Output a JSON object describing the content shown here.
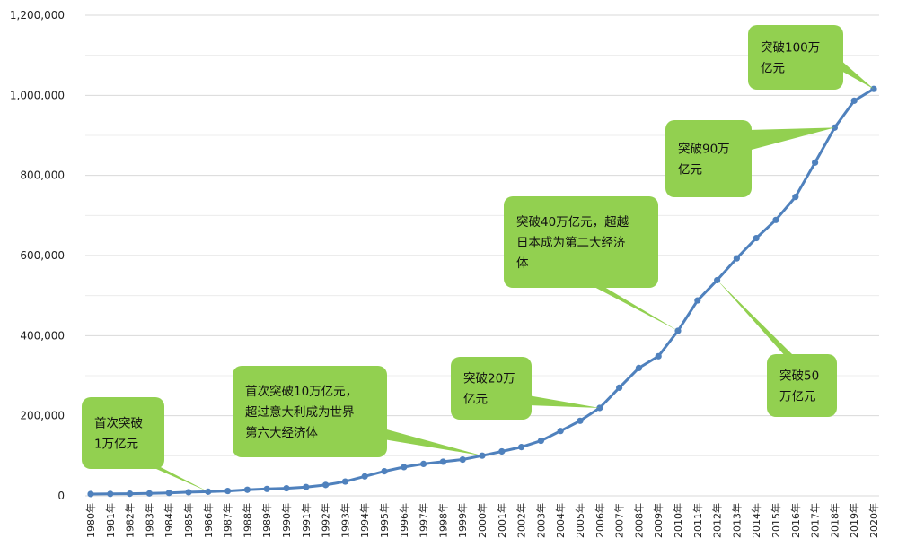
{
  "chart_data": {
    "type": "line",
    "title": "",
    "xlabel": "",
    "ylabel": "",
    "ylim": [
      0,
      1200000
    ],
    "yticks": [
      0,
      200000,
      400000,
      600000,
      800000,
      1000000,
      1200000
    ],
    "ytick_labels": [
      "0",
      "200,000",
      "400,000",
      "600,000",
      "800,000",
      "1,000,000",
      "1,200,000"
    ],
    "grid": true,
    "legend": "none",
    "line_color": "#4f81bd",
    "callout_color": "#92d050",
    "categories": [
      "1980年",
      "1981年",
      "1982年",
      "1983年",
      "1984年",
      "1985年",
      "1986年",
      "1987年",
      "1988年",
      "1989年",
      "1990年",
      "1991年",
      "1992年",
      "1993年",
      "1994年",
      "1995年",
      "1996年",
      "1997年",
      "1998年",
      "1999年",
      "2000年",
      "2001年",
      "2002年",
      "2003年",
      "2004年",
      "2005年",
      "2006年",
      "2007年",
      "2008年",
      "2009年",
      "2010年",
      "2011年",
      "2012年",
      "2013年",
      "2014年",
      "2015年",
      "2016年",
      "2017年",
      "2018年",
      "2019年",
      "2020年"
    ],
    "values": [
      4588,
      4936,
      5373,
      6021,
      7279,
      9099,
      10376,
      12175,
      15180,
      17180,
      18873,
      22006,
      27195,
      35673,
      48638,
      61340,
      71814,
      79715,
      85196,
      90564,
      100280,
      110863,
      121717,
      137422,
      161840,
      187319,
      219439,
      270092,
      319245,
      348518,
      412119,
      487940,
      538580,
      592963,
      643563,
      688858,
      746395,
      832036,
      919281,
      986515,
      1015986
    ],
    "annotations": [
      {
        "lines": [
          "首次突破",
          "1万亿元"
        ],
        "category": "1986年"
      },
      {
        "lines": [
          "首次突破10万亿元，",
          "超过意大利成为世界",
          "第六大经济体"
        ],
        "category": "2000年"
      },
      {
        "lines": [
          "突破20万",
          "亿元"
        ],
        "category": "2006年"
      },
      {
        "lines": [
          "突破40万亿元，超越",
          "日本成为第二大经济",
          "体"
        ],
        "category": "2010年"
      },
      {
        "lines": [
          "突破50",
          "万亿元"
        ],
        "category": "2012年"
      },
      {
        "lines": [
          "突破90万",
          "亿元"
        ],
        "category": "2018年"
      },
      {
        "lines": [
          "突破100万",
          "亿元"
        ],
        "category": "2020年"
      }
    ]
  }
}
